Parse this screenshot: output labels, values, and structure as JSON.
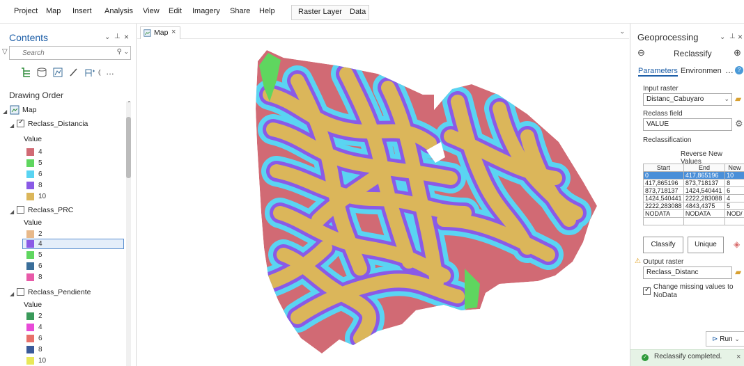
{
  "menubar": {
    "items": [
      "Project",
      "Map",
      "Insert",
      "Analysis",
      "View",
      "Edit",
      "Imagery",
      "Share",
      "Help"
    ],
    "context_tabs": [
      "Raster Layer",
      "Data"
    ]
  },
  "contents": {
    "title": "Contents",
    "search_placeholder": "Search",
    "drawing_order": "Drawing Order",
    "map_label": "Map",
    "layers": [
      {
        "name": "Reclass_Distancia",
        "checked": true,
        "value_label": "Value",
        "classes": [
          {
            "label": "4",
            "color": "#d16a74"
          },
          {
            "label": "5",
            "color": "#5fd65f"
          },
          {
            "label": "6",
            "color": "#5ad4f2"
          },
          {
            "label": "8",
            "color": "#8a5ae6"
          },
          {
            "label": "10",
            "color": "#dbb65a"
          }
        ]
      },
      {
        "name": "Reclass_PRC",
        "checked": false,
        "value_label": "Value",
        "classes": [
          {
            "label": "2",
            "color": "#e8b98a"
          },
          {
            "label": "4",
            "color": "#8a5ae6"
          },
          {
            "label": "5",
            "color": "#5fd65f"
          },
          {
            "label": "6",
            "color": "#3a6e9a"
          },
          {
            "label": "8",
            "color": "#e85aa8"
          }
        ]
      },
      {
        "name": "Reclass_Pendiente",
        "checked": false,
        "value_label": "Value",
        "classes": [
          {
            "label": "2",
            "color": "#3a9a5a"
          },
          {
            "label": "4",
            "color": "#e84ad8"
          },
          {
            "label": "6",
            "color": "#e8706a"
          },
          {
            "label": "8",
            "color": "#3a5a9a"
          },
          {
            "label": "10",
            "color": "#e8e85a"
          }
        ]
      }
    ]
  },
  "map": {
    "tab_label": "Map",
    "colors": {
      "red": "#d16a74",
      "blue": "#5ad4f2",
      "purple": "#8a5ae6",
      "gold": "#dbb65a",
      "green": "#5fd65f"
    }
  },
  "geoprocessing": {
    "title": "Geoprocessing",
    "tool": "Reclassify",
    "tabs": [
      "Parameters",
      "Environmen"
    ],
    "input_raster_label": "Input raster",
    "input_raster": "Distanc_Cabuyaro",
    "reclass_field_label": "Reclass field",
    "reclass_field": "VALUE",
    "reclassification_label": "Reclassification",
    "reverse_label": "Reverse New Values",
    "table_headers": [
      "Start",
      "End",
      "New"
    ],
    "table_rows": [
      [
        "0",
        "417,865196",
        "10"
      ],
      [
        "417,865196",
        "873,718137",
        "8"
      ],
      [
        "873,718137",
        "1424,540441",
        "6"
      ],
      [
        "1424,540441",
        "2222,283088",
        "4"
      ],
      [
        "2222,283088",
        "4843,4375",
        "5"
      ],
      [
        "NODATA",
        "NODATA",
        "NOD/"
      ],
      [
        "",
        "",
        ""
      ]
    ],
    "classify_label": "Classify",
    "unique_label": "Unique",
    "output_raster_label": "Output raster",
    "output_raster": "Reclass_Distanc",
    "change_missing_label": "Change missing values to NoData",
    "run_label": "Run",
    "status_text": "Reclassify completed."
  }
}
